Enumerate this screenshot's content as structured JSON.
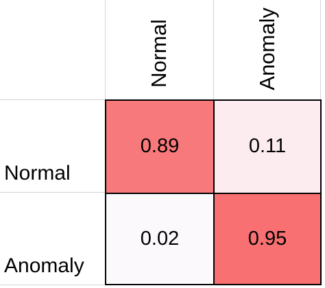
{
  "chart_data": {
    "type": "heatmap",
    "x_categories": [
      "Normal",
      "Anomaly"
    ],
    "y_categories": [
      "Normal",
      "Anomaly"
    ],
    "values": [
      [
        0.89,
        0.11
      ],
      [
        0.02,
        0.95
      ]
    ],
    "labels": [
      [
        "0.89",
        "0.11"
      ],
      [
        "0.02",
        "0.95"
      ]
    ],
    "colors": {
      "high": "#f8696b",
      "low": "#fcfcff"
    },
    "range": [
      0,
      1
    ]
  }
}
